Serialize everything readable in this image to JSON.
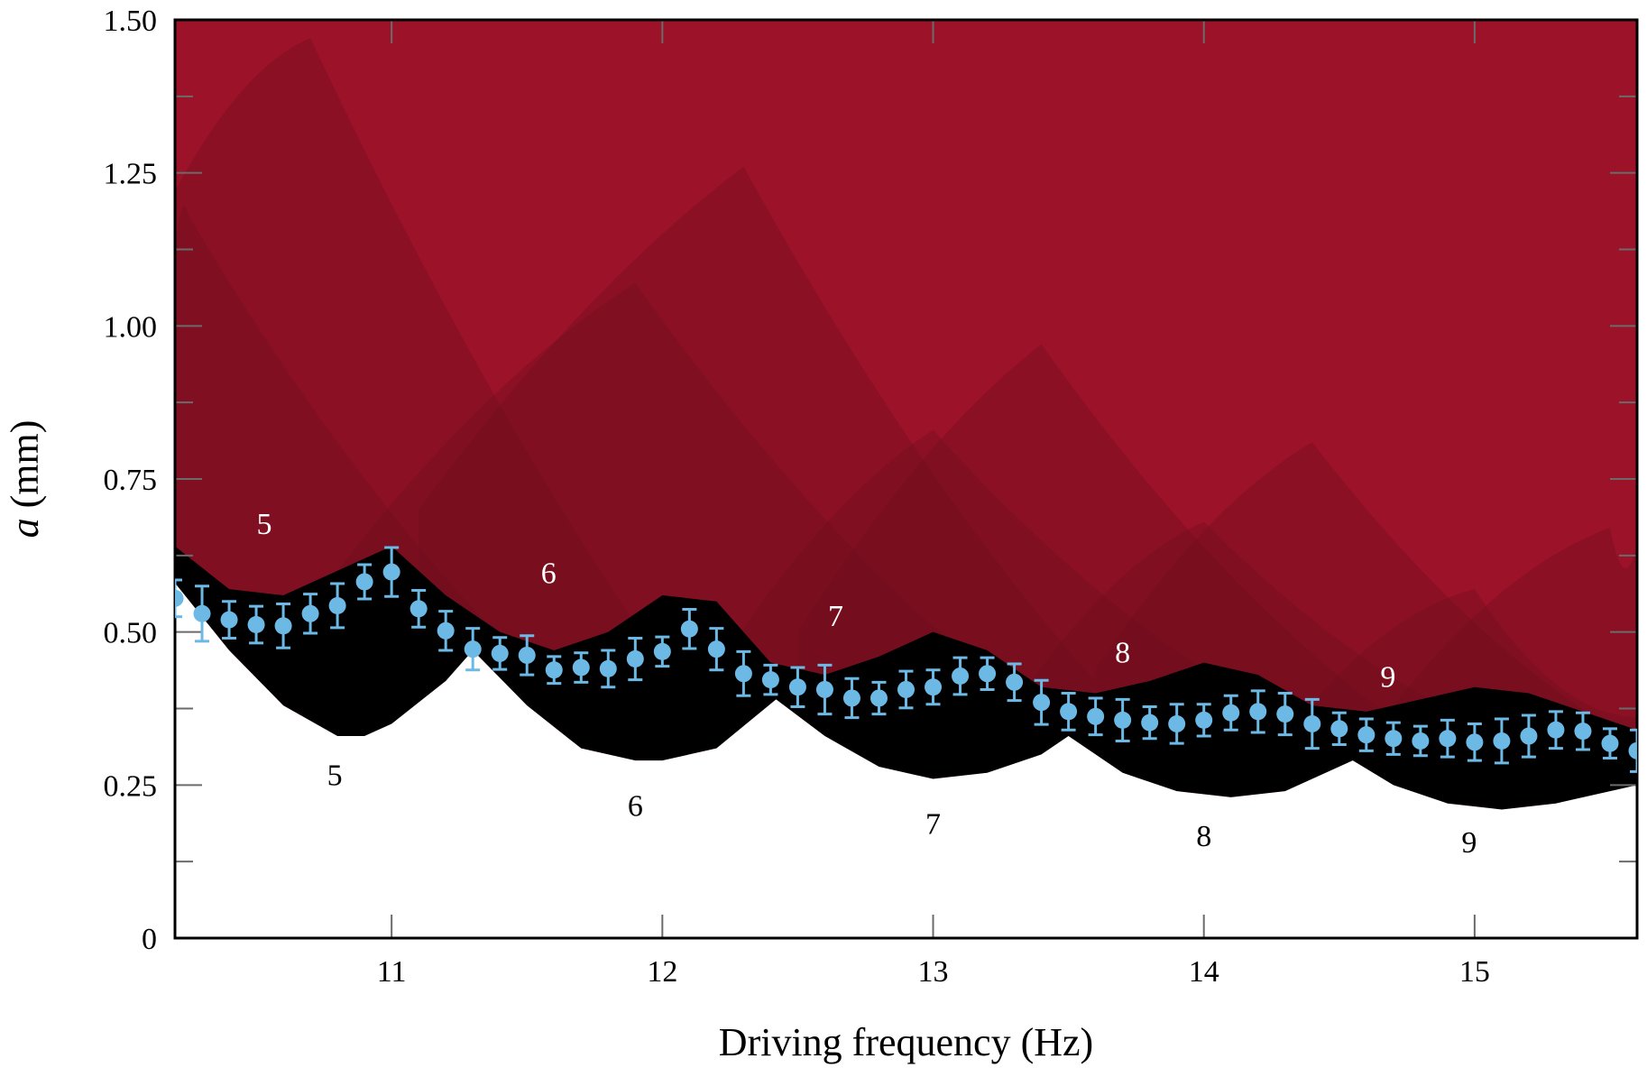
{
  "chart_data": {
    "type": "scatter",
    "title": "",
    "xlabel": "Driving frequency (Hz)",
    "ylabel_italic": "a",
    "ylabel_rest": " (mm)",
    "xlim": [
      10.2,
      15.6
    ],
    "ylim": [
      0,
      1.5
    ],
    "x_ticks": [
      {
        "value": 11,
        "label": "11"
      },
      {
        "value": 12,
        "label": "12"
      },
      {
        "value": 13,
        "label": "13"
      },
      {
        "value": 14,
        "label": "14"
      },
      {
        "value": 15,
        "label": "15"
      }
    ],
    "y_ticks": [
      {
        "value": 0,
        "label": "0"
      },
      {
        "value": 0.25,
        "label": "0.25"
      },
      {
        "value": 0.5,
        "label": "0.50"
      },
      {
        "value": 0.75,
        "label": "0.75"
      },
      {
        "value": 1.0,
        "label": "1.00"
      },
      {
        "value": 1.25,
        "label": "1.25"
      },
      {
        "value": 1.5,
        "label": "1.50"
      }
    ],
    "colors": {
      "background_region": "#9b1229",
      "upper_tongue": "#6e0f1e",
      "lower_tongue": "#000000",
      "points": "#6cb9e6",
      "label_upper": "#ffffff",
      "label_lower": "#000000"
    },
    "series": [
      {
        "x": [
          10.2,
          10.3,
          10.4,
          10.5,
          10.6,
          10.7,
          10.8,
          10.9,
          11.0,
          11.1,
          11.2,
          11.3,
          11.4,
          11.5,
          11.6,
          11.7,
          11.8,
          11.9,
          12.0,
          12.1,
          12.2,
          12.3,
          12.4,
          12.5,
          12.6,
          12.7,
          12.8,
          12.9,
          13.0,
          13.1,
          13.2,
          13.3,
          13.4,
          13.5,
          13.6,
          13.7,
          13.8,
          13.9,
          14.0,
          14.1,
          14.2,
          14.3,
          14.4,
          14.5,
          14.6,
          14.7,
          14.8,
          14.9,
          15.0,
          15.1,
          15.2,
          15.3,
          15.4,
          15.5,
          15.6
        ],
        "y": [
          0.555,
          0.53,
          0.52,
          0.512,
          0.51,
          0.53,
          0.543,
          0.582,
          0.598,
          0.538,
          0.502,
          0.472,
          0.465,
          0.462,
          0.438,
          0.442,
          0.44,
          0.456,
          0.468,
          0.505,
          0.472,
          0.432,
          0.422,
          0.41,
          0.406,
          0.392,
          0.392,
          0.406,
          0.41,
          0.428,
          0.432,
          0.418,
          0.385,
          0.37,
          0.362,
          0.356,
          0.352,
          0.35,
          0.356,
          0.368,
          0.37,
          0.366,
          0.35,
          0.342,
          0.332,
          0.326,
          0.322,
          0.326,
          0.32,
          0.322,
          0.33,
          0.34,
          0.338,
          0.318,
          0.306
        ],
        "err": [
          0.03,
          0.045,
          0.03,
          0.03,
          0.036,
          0.032,
          0.036,
          0.028,
          0.04,
          0.03,
          0.032,
          0.034,
          0.026,
          0.032,
          0.022,
          0.024,
          0.03,
          0.034,
          0.024,
          0.032,
          0.034,
          0.036,
          0.024,
          0.032,
          0.04,
          0.032,
          0.026,
          0.03,
          0.028,
          0.03,
          0.026,
          0.03,
          0.036,
          0.03,
          0.03,
          0.034,
          0.026,
          0.032,
          0.026,
          0.028,
          0.034,
          0.034,
          0.04,
          0.026,
          0.026,
          0.026,
          0.024,
          0.03,
          0.03,
          0.036,
          0.034,
          0.03,
          0.03,
          0.024,
          0.034
        ]
      }
    ],
    "boundary_upper": {
      "x": [
        10.2,
        10.4,
        10.6,
        10.8,
        11.0,
        11.2,
        11.4,
        11.6,
        11.8,
        12.0,
        12.2,
        12.4,
        12.6,
        12.8,
        13.0,
        13.2,
        13.4,
        13.6,
        13.8,
        14.0,
        14.2,
        14.4,
        14.6,
        14.8,
        15.0,
        15.2,
        15.4,
        15.6
      ],
      "y": [
        0.64,
        0.57,
        0.56,
        0.6,
        0.64,
        0.56,
        0.5,
        0.47,
        0.5,
        0.56,
        0.55,
        0.45,
        0.43,
        0.46,
        0.5,
        0.47,
        0.41,
        0.4,
        0.42,
        0.45,
        0.43,
        0.38,
        0.37,
        0.39,
        0.41,
        0.4,
        0.37,
        0.34
      ]
    },
    "boundary_lower": {
      "x": [
        10.2,
        10.4,
        10.6,
        10.8,
        10.9,
        11.0,
        11.2,
        11.3,
        11.5,
        11.7,
        11.9,
        12.0,
        12.2,
        12.42,
        12.6,
        12.8,
        13.0,
        13.2,
        13.4,
        13.5,
        13.7,
        13.9,
        14.1,
        14.3,
        14.55,
        14.7,
        14.9,
        15.1,
        15.3,
        15.6
      ],
      "y": [
        0.58,
        0.47,
        0.38,
        0.33,
        0.33,
        0.35,
        0.42,
        0.47,
        0.38,
        0.31,
        0.29,
        0.29,
        0.31,
        0.39,
        0.33,
        0.28,
        0.26,
        0.27,
        0.3,
        0.33,
        0.27,
        0.24,
        0.23,
        0.24,
        0.29,
        0.25,
        0.22,
        0.21,
        0.22,
        0.25
      ]
    },
    "upper_tongues": [
      {
        "apex": [
          10.7,
          1.47
        ],
        "left": [
          10.2,
          1.22
        ],
        "right": [
          12.0,
          0.45
        ]
      },
      {
        "apex": [
          10.25,
          1.18
        ],
        "left": [
          10.2,
          1.12
        ],
        "right": [
          11.5,
          0.45
        ]
      },
      {
        "apex": [
          11.9,
          1.07
        ],
        "left": [
          10.8,
          0.6
        ],
        "right": [
          13.3,
          0.4
        ]
      },
      {
        "apex": [
          12.3,
          1.26
        ],
        "left": [
          11.1,
          0.7
        ],
        "right": [
          13.6,
          0.42
        ]
      },
      {
        "apex": [
          13.0,
          0.83
        ],
        "left": [
          12.2,
          0.44
        ],
        "right": [
          14.4,
          0.34
        ]
      },
      {
        "apex": [
          13.4,
          0.97
        ],
        "left": [
          12.5,
          0.5
        ],
        "right": [
          14.7,
          0.36
        ]
      },
      {
        "apex": [
          14.0,
          0.68
        ],
        "left": [
          13.3,
          0.38
        ],
        "right": [
          15.3,
          0.3
        ]
      },
      {
        "apex": [
          14.4,
          0.81
        ],
        "left": [
          13.6,
          0.44
        ],
        "right": [
          15.6,
          0.32
        ]
      },
      {
        "apex": [
          15.0,
          0.57
        ],
        "left": [
          14.3,
          0.33
        ],
        "right": [
          15.6,
          0.36
        ]
      },
      {
        "apex": [
          15.5,
          0.67
        ],
        "left": [
          14.7,
          0.38
        ],
        "right": [
          15.6,
          0.64
        ]
      }
    ],
    "annotations_upper": [
      {
        "text": "5",
        "x": 10.53,
        "y": 0.66
      },
      {
        "text": "6",
        "x": 11.58,
        "y": 0.58
      },
      {
        "text": "7",
        "x": 12.64,
        "y": 0.51
      },
      {
        "text": "8",
        "x": 13.7,
        "y": 0.45
      },
      {
        "text": "9",
        "x": 14.68,
        "y": 0.41
      }
    ],
    "annotations_lower": [
      {
        "text": "5",
        "x": 10.79,
        "y": 0.25
      },
      {
        "text": "6",
        "x": 11.9,
        "y": 0.2
      },
      {
        "text": "7",
        "x": 13.0,
        "y": 0.17
      },
      {
        "text": "8",
        "x": 14.0,
        "y": 0.15
      },
      {
        "text": "9",
        "x": 14.98,
        "y": 0.14
      }
    ]
  }
}
